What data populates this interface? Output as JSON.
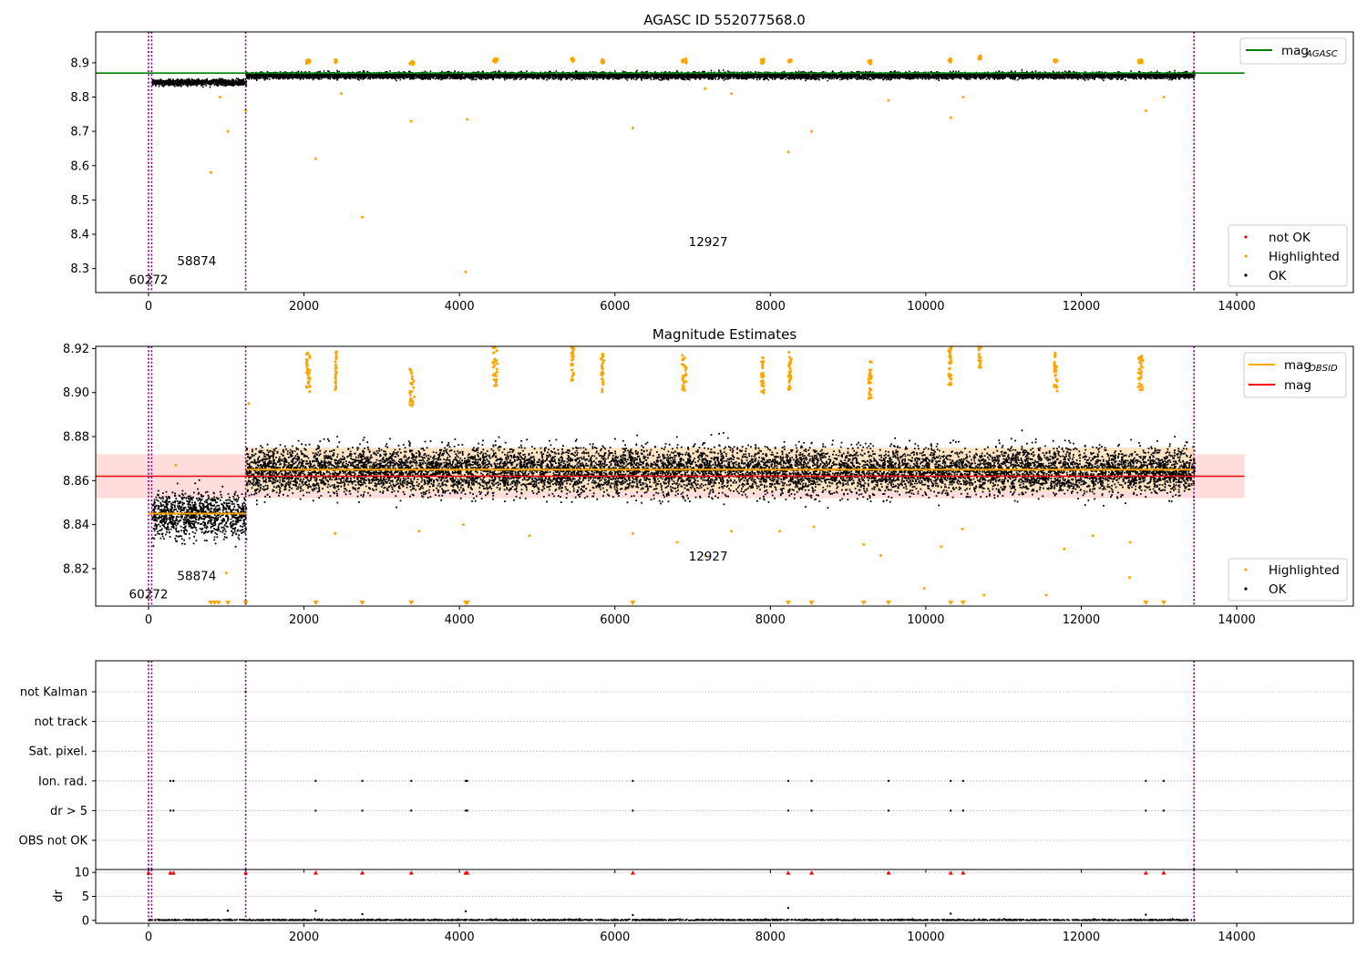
{
  "figure": {
    "panels": [
      {
        "id": "p1",
        "title": "AGASC ID 552077568.0",
        "xlim": [
          -680,
          15500
        ],
        "ylim": [
          8.23,
          8.99
        ],
        "xticks": [
          0,
          2000,
          4000,
          6000,
          8000,
          10000,
          12000,
          14000
        ],
        "yticks": [
          8.3,
          8.4,
          8.5,
          8.6,
          8.7,
          8.8,
          8.9
        ],
        "vlines": [
          0,
          40,
          1250,
          13450
        ],
        "hline": {
          "y": 8.87,
          "x0": -680,
          "x1": 14100,
          "color": "#008000"
        },
        "annotations": [
          {
            "text": "60272",
            "x": 0,
            "y": 8.255
          },
          {
            "text": "58874",
            "x": 620,
            "y": 8.31
          },
          {
            "text": "12927",
            "x": 7200,
            "y": 8.365
          }
        ],
        "legend_lines": [
          {
            "label": "mag",
            "sub": "AGASC",
            "color": "#008000"
          }
        ],
        "legend_points": [
          {
            "label": "not OK",
            "color": "#ff0000"
          },
          {
            "label": "Highlighted",
            "color": "#ffa500"
          },
          {
            "label": "OK",
            "color": "#000000"
          }
        ]
      },
      {
        "id": "p2",
        "title": "Magnitude Estimates",
        "xlim": [
          -680,
          15500
        ],
        "ylim": [
          8.803,
          8.921
        ],
        "xticks": [
          0,
          2000,
          4000,
          6000,
          8000,
          10000,
          12000,
          14000
        ],
        "yticks": [
          8.82,
          8.84,
          8.86,
          8.88,
          8.9,
          8.92
        ],
        "vlines": [
          0,
          40,
          1250,
          13450
        ],
        "band": {
          "y0": 8.852,
          "y1": 8.872,
          "x0": -680,
          "x1": 14100,
          "color": "#ffdddd"
        },
        "hline": {
          "y": 8.862,
          "x0": -680,
          "x1": 14100,
          "color": "#ff0000"
        },
        "obsid_levels": [
          {
            "x0": 0,
            "x1": 1250,
            "y": 8.845
          },
          {
            "x0": 1250,
            "x1": 13450,
            "y": 8.865
          }
        ],
        "annotations": [
          {
            "text": "60272",
            "x": 0,
            "y": 8.8065
          },
          {
            "text": "58874",
            "x": 620,
            "y": 8.8148
          },
          {
            "text": "12927",
            "x": 7200,
            "y": 8.8236
          }
        ],
        "legend_lines": [
          {
            "label": "mag",
            "sub": "OBSID",
            "color": "#ffa500"
          },
          {
            "label": "mag",
            "sub": "",
            "color": "#ff0000"
          }
        ],
        "legend_points": [
          {
            "label": "Highlighted",
            "color": "#ffa500"
          },
          {
            "label": "OK",
            "color": "#000000"
          }
        ]
      },
      {
        "id": "p3",
        "xlim": [
          -680,
          15500
        ],
        "categories": [
          "not Kalman",
          "not track",
          "Sat. pixel.",
          "Ion. rad.",
          "dr > 5",
          "OBS not OK"
        ],
        "vlines": [
          0,
          40,
          1250,
          13450
        ],
        "flag_events": {
          "Ion. rad.": [
            280,
            320,
            2150,
            2750,
            3380,
            4080,
            4100,
            6230,
            8230,
            8530,
            9520,
            10320,
            10480,
            12830,
            13060
          ],
          "dr > 5": [
            280,
            320,
            2150,
            2750,
            3380,
            4080,
            4100,
            6230,
            8230,
            8530,
            9520,
            10320,
            10480,
            12830,
            13060
          ],
          "not Kalman": [
            1250
          ]
        }
      },
      {
        "id": "p4",
        "ylabel": "dr",
        "xlim": [
          -680,
          15500
        ],
        "ylim": [
          -0.6,
          10.6
        ],
        "xticks": [
          0,
          2000,
          4000,
          6000,
          8000,
          10000,
          12000,
          14000
        ],
        "yticks": [
          0,
          5,
          10
        ],
        "vlines": [
          0,
          40,
          1250,
          13450
        ],
        "clipped_markers_at_10": [
          0,
          280,
          320,
          1250,
          2150,
          2750,
          3380,
          4080,
          4100,
          6230,
          8230,
          8530,
          9520,
          10320,
          10480,
          12830,
          13060
        ],
        "outliers": [
          [
            1020,
            2.0
          ],
          [
            2150,
            2.0
          ],
          [
            4080,
            1.9
          ],
          [
            8230,
            2.6
          ],
          [
            2750,
            1.3
          ],
          [
            10320,
            1.4
          ],
          [
            12830,
            1.2
          ],
          [
            6230,
            1.1
          ]
        ]
      }
    ]
  },
  "chart_data": [
    {
      "type": "scatter",
      "title": "AGASC ID 552077568.0",
      "xlabel": "",
      "ylabel": "",
      "xlim": [
        -680,
        15500
      ],
      "ylim": [
        8.23,
        8.99
      ],
      "mag_agasc": 8.87,
      "segments": [
        {
          "obsid": "60272",
          "x_range": [
            0,
            40
          ]
        },
        {
          "obsid": "58874",
          "x_range": [
            40,
            1250
          ],
          "mag_mean": 8.845,
          "mag_std": 0.007
        },
        {
          "obsid": "12927",
          "x_range": [
            1250,
            13450
          ],
          "mag_mean": 8.865,
          "mag_std": 0.0075
        }
      ],
      "highlighted_clusters": [
        {
          "x_range": [
            2030,
            2080
          ],
          "y": 8.905
        },
        {
          "x_range": [
            2400,
            2420
          ],
          "y": 8.906
        },
        {
          "x_range": [
            3360,
            3420
          ],
          "y": 8.898
        },
        {
          "x_range": [
            4430,
            4490
          ],
          "y": 8.908
        },
        {
          "x_range": [
            5440,
            5470
          ],
          "y": 8.91
        },
        {
          "x_range": [
            5820,
            5860
          ],
          "y": 8.905
        },
        {
          "x_range": [
            6860,
            6920
          ],
          "y": 8.905
        },
        {
          "x_range": [
            7880,
            7920
          ],
          "y": 8.904
        },
        {
          "x_range": [
            8230,
            8270
          ],
          "y": 8.906
        },
        {
          "x_range": [
            9260,
            9300
          ],
          "y": 8.902
        },
        {
          "x_range": [
            10290,
            10330
          ],
          "y": 8.908
        },
        {
          "x_range": [
            10680,
            10710
          ],
          "y": 8.915
        },
        {
          "x_range": [
            11650,
            11690
          ],
          "y": 8.905
        },
        {
          "x_range": [
            12730,
            12790
          ],
          "y": 8.905
        }
      ],
      "low_outliers": [
        [
          800,
          8.58
        ],
        [
          1020,
          8.7
        ],
        [
          2150,
          8.62
        ],
        [
          2750,
          8.45
        ],
        [
          3380,
          8.73
        ],
        [
          4080,
          8.29
        ],
        [
          4100,
          8.735
        ],
        [
          6230,
          8.71
        ],
        [
          8230,
          8.64
        ],
        [
          8530,
          8.7
        ],
        [
          10320,
          8.74
        ],
        [
          12830,
          8.76
        ],
        [
          1250,
          8.76
        ],
        [
          920,
          8.8
        ],
        [
          2480,
          8.81
        ],
        [
          7160,
          8.825
        ],
        [
          7500,
          8.81
        ],
        [
          9520,
          8.79
        ],
        [
          10480,
          8.8
        ],
        [
          13060,
          8.8
        ]
      ],
      "legend": [
        "mag_AGASC",
        "not OK",
        "Highlighted",
        "OK"
      ]
    },
    {
      "type": "scatter",
      "title": "Magnitude Estimates",
      "xlim": [
        -680,
        15500
      ],
      "ylim": [
        8.803,
        8.921
      ],
      "mag": 8.862,
      "mag_band": [
        8.852,
        8.872
      ],
      "mag_obsid": [
        {
          "x_range": [
            0,
            1250
          ],
          "value": 8.845
        },
        {
          "x_range": [
            1250,
            13450
          ],
          "value": 8.865
        }
      ],
      "legend": [
        "mag_OBSID",
        "mag",
        "Highlighted",
        "OK"
      ]
    },
    {
      "type": "scatter",
      "categories": [
        "not Kalman",
        "not track",
        "Sat. pixel.",
        "Ion. rad.",
        "dr > 5",
        "OBS not OK"
      ],
      "events": {
        "Ion. rad.": [
          280,
          320,
          2150,
          2750,
          3380,
          4080,
          4100,
          6230,
          8230,
          8530,
          9520,
          10320,
          10480,
          12830,
          13060
        ],
        "dr > 5": [
          280,
          320,
          2150,
          2750,
          3380,
          4080,
          4100,
          6230,
          8230,
          8530,
          9520,
          10320,
          10480,
          12830,
          13060
        ]
      }
    },
    {
      "type": "scatter",
      "ylabel": "dr",
      "xlim": [
        -680,
        15500
      ],
      "ylim": [
        -0.6,
        10.6
      ],
      "typical_dr": 0.3,
      "clipped_at_10": [
        0,
        280,
        320,
        1250,
        2150,
        2750,
        3380,
        4080,
        4100,
        6230,
        8230,
        8530,
        9520,
        10320,
        10480,
        12830,
        13060
      ]
    }
  ]
}
